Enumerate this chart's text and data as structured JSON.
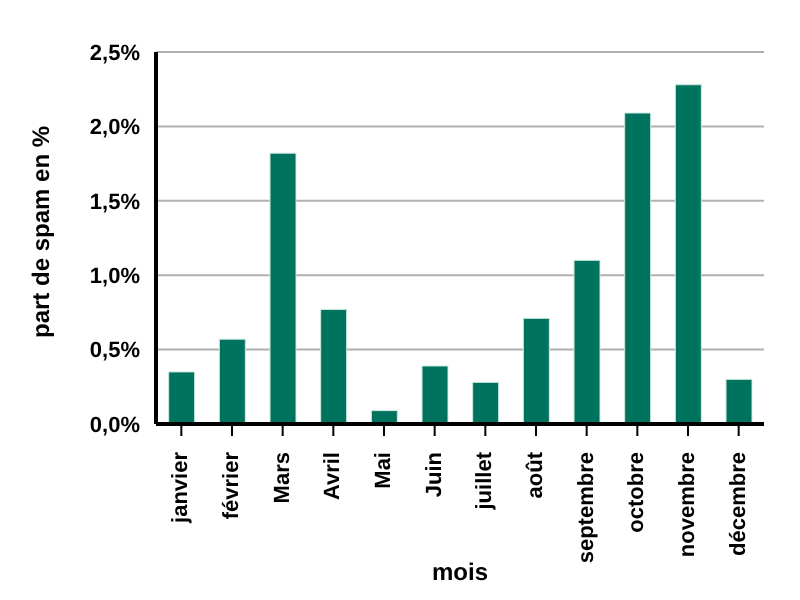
{
  "chart_data": {
    "type": "bar",
    "xlabel": "mois",
    "ylabel": "part de spam en %",
    "categories": [
      "janvier",
      "février",
      "Mars",
      "Avril",
      "Mai",
      "Juin",
      "juillet",
      "août",
      "septembre",
      "octobre",
      "novembre",
      "décembre"
    ],
    "values": [
      0.35,
      0.57,
      1.82,
      0.77,
      0.09,
      0.39,
      0.28,
      0.71,
      1.1,
      2.09,
      2.28,
      0.3
    ],
    "color": "#00735f",
    "ylim": [
      0,
      2.5
    ],
    "yticks": [
      {
        "value": 0,
        "label": "0,0%"
      },
      {
        "value": 0.5,
        "label": "0,5%"
      },
      {
        "value": 1,
        "label": "1,0%"
      },
      {
        "value": 1.5,
        "label": "1,5%"
      },
      {
        "value": 2,
        "label": "2,0%"
      },
      {
        "value": 2.5,
        "label": "2,5%"
      }
    ],
    "grid": "y",
    "legend": false
  }
}
